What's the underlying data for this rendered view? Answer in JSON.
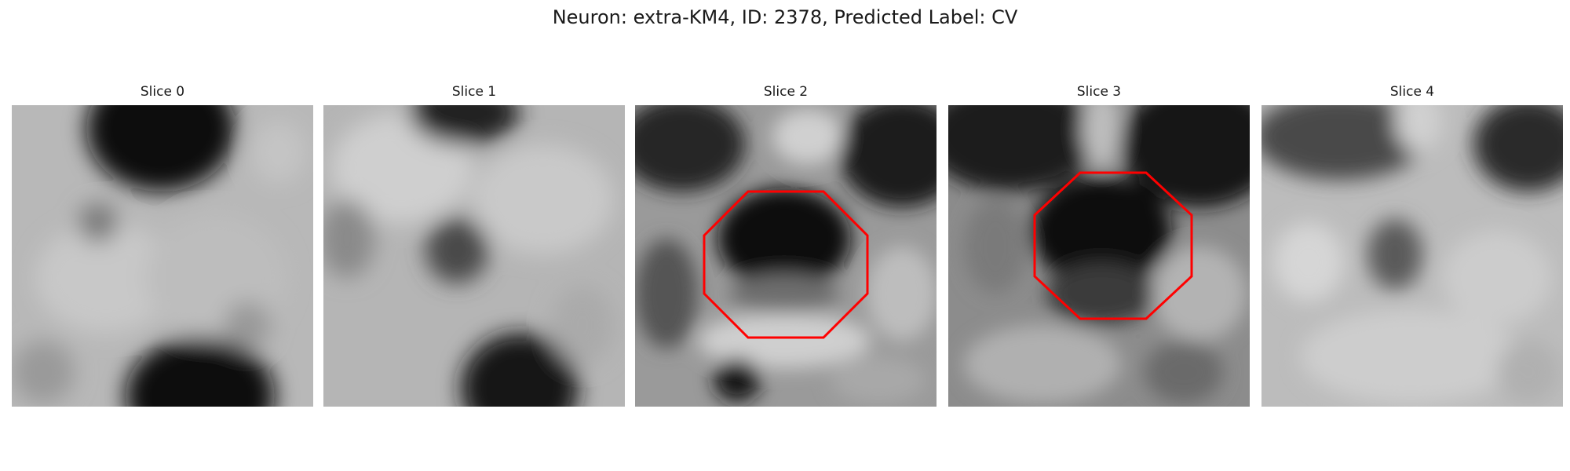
{
  "figure": {
    "title": "Neuron: extra-KM4, ID: 2378, Predicted Label: CV"
  },
  "panels": [
    {
      "title": "Slice 0",
      "roi_outline": false
    },
    {
      "title": "Slice 1",
      "roi_outline": false
    },
    {
      "title": "Slice 2",
      "roi_outline": true
    },
    {
      "title": "Slice 3",
      "roi_outline": true
    },
    {
      "title": "Slice 4",
      "roi_outline": false
    }
  ],
  "colors": {
    "roi_outline": "#ff0000",
    "background": "#ffffff",
    "text": "#1a1a1a"
  }
}
